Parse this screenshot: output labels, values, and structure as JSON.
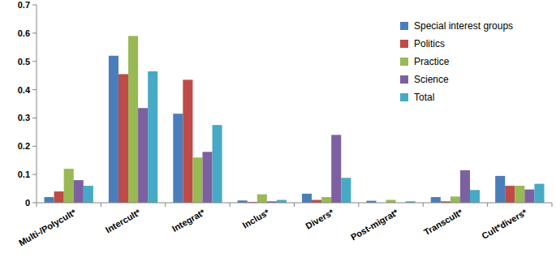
{
  "chart_data": {
    "type": "bar",
    "categories": [
      "Multi-/Polycult*",
      "Intercult*",
      "Integrat*",
      "Inclus*",
      "Divers*",
      "Post-migrat*",
      "Transcult*",
      "Cult*divers*"
    ],
    "series": [
      {
        "name": "Special interest groups",
        "color": "#4a7ebb",
        "values": [
          0.02,
          0.52,
          0.315,
          0.008,
          0.032,
          0.007,
          0.02,
          0.095
        ]
      },
      {
        "name": "Politics",
        "color": "#be4b48",
        "values": [
          0.04,
          0.455,
          0.435,
          0.003,
          0.01,
          0,
          0.005,
          0.06
        ]
      },
      {
        "name": "Practice",
        "color": "#98b954",
        "values": [
          0.12,
          0.59,
          0.16,
          0.03,
          0.02,
          0.01,
          0.022,
          0.06
        ]
      },
      {
        "name": "Science",
        "color": "#7d60a0",
        "values": [
          0.08,
          0.335,
          0.18,
          0.005,
          0.24,
          0,
          0.115,
          0.047
        ]
      },
      {
        "name": "Total",
        "color": "#46aac5",
        "values": [
          0.06,
          0.465,
          0.275,
          0.01,
          0.088,
          0.005,
          0.045,
          0.067
        ]
      }
    ],
    "ylim": [
      0,
      0.7
    ],
    "yticks": [
      0,
      0.1,
      0.2,
      0.3,
      0.4,
      0.5,
      0.6,
      0.7
    ],
    "grid": false,
    "legend": "upper right"
  }
}
